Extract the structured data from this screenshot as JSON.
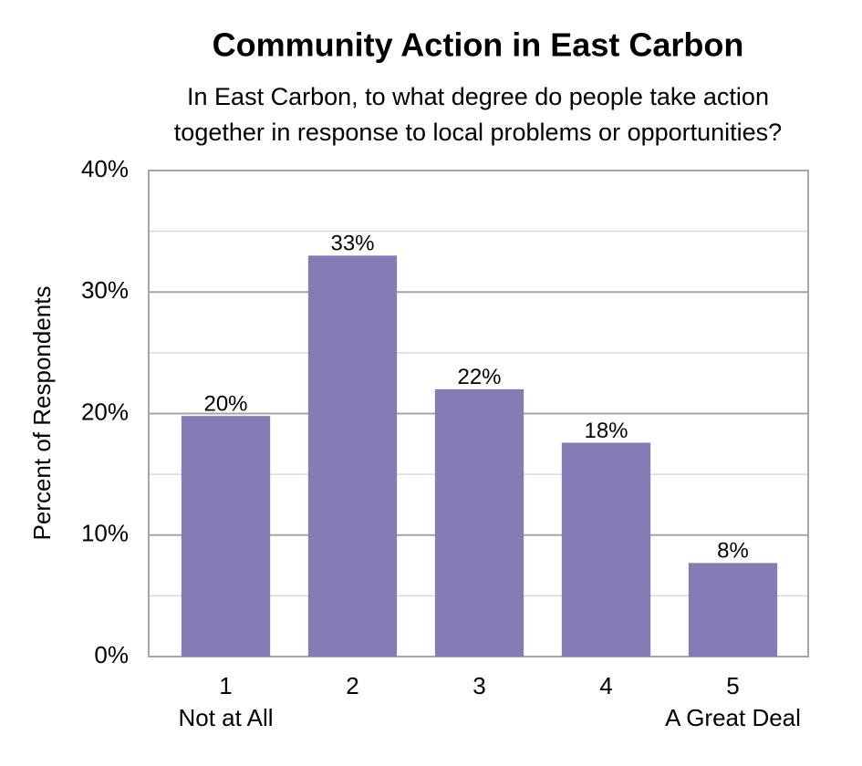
{
  "chart_data": {
    "type": "bar",
    "title": "Community Action in East Carbon",
    "subtitle": [
      "In East Carbon, to what degree do people take action",
      "together in response to local problems or opportunities?"
    ],
    "y_label": "Percent of Respondents",
    "categories": [
      "1",
      "2",
      "3",
      "4",
      "5"
    ],
    "category_sublabels": [
      "Not at All",
      null,
      null,
      null,
      "A Great Deal"
    ],
    "values": [
      19.8,
      33,
      22,
      17.6,
      7.7
    ],
    "value_labels": [
      "20%",
      "33%",
      "22%",
      "18%",
      "8%"
    ],
    "color": "#877bb6",
    "ylim": [
      0,
      40
    ],
    "yticks": [
      {
        "value": 0,
        "label": "0%"
      },
      {
        "value": 10,
        "label": "10%"
      },
      {
        "value": 20,
        "label": "20%"
      },
      {
        "value": 30,
        "label": "30%"
      },
      {
        "value": 40,
        "label": "40%"
      }
    ],
    "yminorticks": [
      5,
      15,
      25,
      35
    ],
    "grid": true
  }
}
